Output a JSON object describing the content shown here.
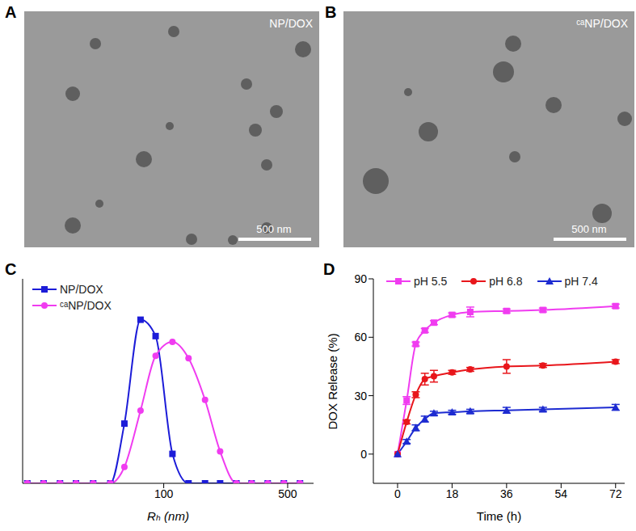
{
  "images": [
    {
      "label": "A",
      "caption": "NP/DOX",
      "scale_bar": "500 nm"
    },
    {
      "label": "B",
      "caption": "ᶜᵃNP/DOX",
      "scale_bar": "500 nm"
    }
  ],
  "chart_data": [
    {
      "type": "line",
      "annotations": [
        "C"
      ],
      "x_label": "Rₕ (nm)",
      "log": "x",
      "xlim": [
        16,
        700
      ],
      "xticks": [
        100,
        500
      ],
      "ylim": [
        0,
        25
      ],
      "yticks": [],
      "tick_labels": "x",
      "legend": "upper left",
      "x": [
        17,
        21,
        26,
        32,
        40,
        50,
        60,
        74,
        90,
        112,
        138,
        171,
        208,
        257,
        313,
        386,
        476,
        587
      ],
      "series": [
        {
          "name": "NP/DOX",
          "color": "#1c1cd8",
          "marker": "square",
          "values": [
            0,
            0,
            0,
            0,
            0,
            0,
            7.3,
            20,
            18,
            3.6,
            0,
            0,
            0,
            0,
            0,
            0,
            0,
            0
          ]
        },
        {
          "name": "ᶜᵃNP/DOX",
          "color": "#f03cf0",
          "marker": "circle",
          "values": [
            0,
            0,
            0,
            0,
            0,
            0,
            2,
            8.9,
            15.6,
            17.3,
            15.3,
            10.2,
            3.9,
            0,
            0,
            0,
            0,
            0
          ]
        }
      ]
    },
    {
      "type": "line",
      "annotations": [
        "D"
      ],
      "x_label": "Time (h)",
      "y_label": "DOX Release (%)",
      "xlim": [
        -8,
        75
      ],
      "xticks": [
        0,
        18,
        36,
        54,
        72
      ],
      "ylim": [
        -15,
        90
      ],
      "yticks": [
        0,
        30,
        60,
        90
      ],
      "legend": "top",
      "x": [
        0,
        3,
        6,
        9,
        12,
        18,
        24,
        36,
        48,
        72
      ],
      "series": [
        {
          "name": "pH 5.5",
          "color": "#f03cf0",
          "marker": "square",
          "values": [
            0,
            27.5,
            56.5,
            63.5,
            67.5,
            71.5,
            73,
            73.5,
            74,
            76
          ],
          "errors": [
            0,
            2,
            1,
            1,
            1,
            1,
            2.5,
            1,
            1,
            1
          ]
        },
        {
          "name": "pH 6.8",
          "color": "#e8161b",
          "marker": "circle",
          "values": [
            0,
            16.5,
            30.5,
            38.5,
            40,
            42,
            43.5,
            45,
            45.5,
            47.5
          ],
          "errors": [
            0,
            1,
            1.5,
            3,
            3,
            1,
            1,
            3.5,
            1,
            1
          ]
        },
        {
          "name": "pH 7.4",
          "color": "#1d2bd1",
          "marker": "triangle",
          "values": [
            0,
            6.5,
            13.5,
            18,
            21,
            21.5,
            22,
            22.5,
            23,
            24
          ],
          "errors": [
            0,
            1,
            1.5,
            1.5,
            1,
            1,
            1,
            1.5,
            1,
            1.5
          ]
        }
      ]
    }
  ]
}
